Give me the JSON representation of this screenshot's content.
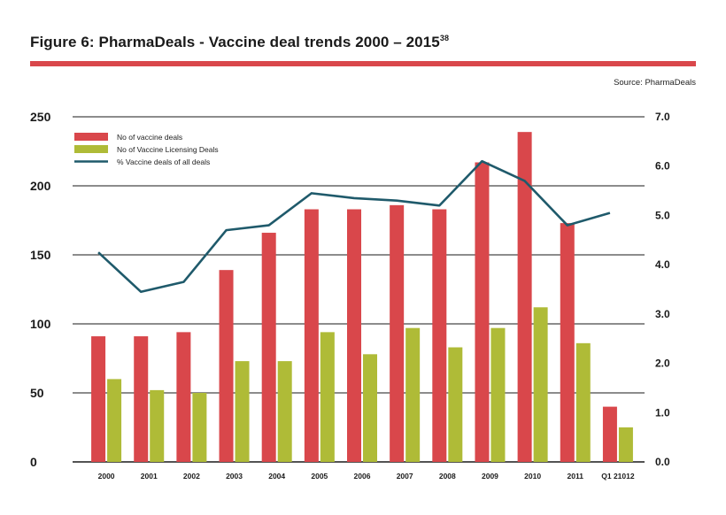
{
  "header": {
    "title": "Figure 6: PharmaDeals - Vaccine deal trends 2000 – 2015",
    "title_sup": "38",
    "source": "Source: PharmaDeals"
  },
  "colors": {
    "accent": "#d9474b",
    "bar_deals": "#d9474b",
    "bar_licensing": "#afbb37",
    "line": "#1f5a6b",
    "grid": "#1a1a1a"
  },
  "chart_data": {
    "type": "bar",
    "categories": [
      "2000",
      "2001",
      "2002",
      "2003",
      "2004",
      "2005",
      "2006",
      "2007",
      "2008",
      "2009",
      "2010",
      "2011",
      "Q1 21012"
    ],
    "series": [
      {
        "name": "No of vaccine deals",
        "type": "bar",
        "axis": "left",
        "color": "#d9474b",
        "values": [
          91,
          91,
          94,
          139,
          166,
          183,
          183,
          186,
          183,
          217,
          239,
          173,
          40
        ]
      },
      {
        "name": "No of Vaccine Licensing Deals",
        "type": "bar",
        "axis": "left",
        "color": "#afbb37",
        "values": [
          60,
          52,
          50,
          73,
          73,
          94,
          78,
          97,
          83,
          97,
          112,
          86,
          25
        ]
      },
      {
        "name": "% Vaccine deals of all deals",
        "type": "line",
        "axis": "right",
        "color": "#1f5a6b",
        "values": [
          4.25,
          3.45,
          3.65,
          4.7,
          4.8,
          5.45,
          5.35,
          5.3,
          5.2,
          6.1,
          5.7,
          4.8,
          5.05
        ]
      }
    ],
    "y_left": {
      "ticks": [
        "0",
        "50",
        "100",
        "150",
        "200",
        "250"
      ],
      "range": [
        0,
        250
      ]
    },
    "y_right": {
      "ticks": [
        "0.0",
        "1.0",
        "2.0",
        "3.0",
        "4.0",
        "5.0",
        "6.0",
        "7.0"
      ],
      "range": [
        0,
        7
      ]
    },
    "grid": true,
    "legend": "top-left"
  }
}
